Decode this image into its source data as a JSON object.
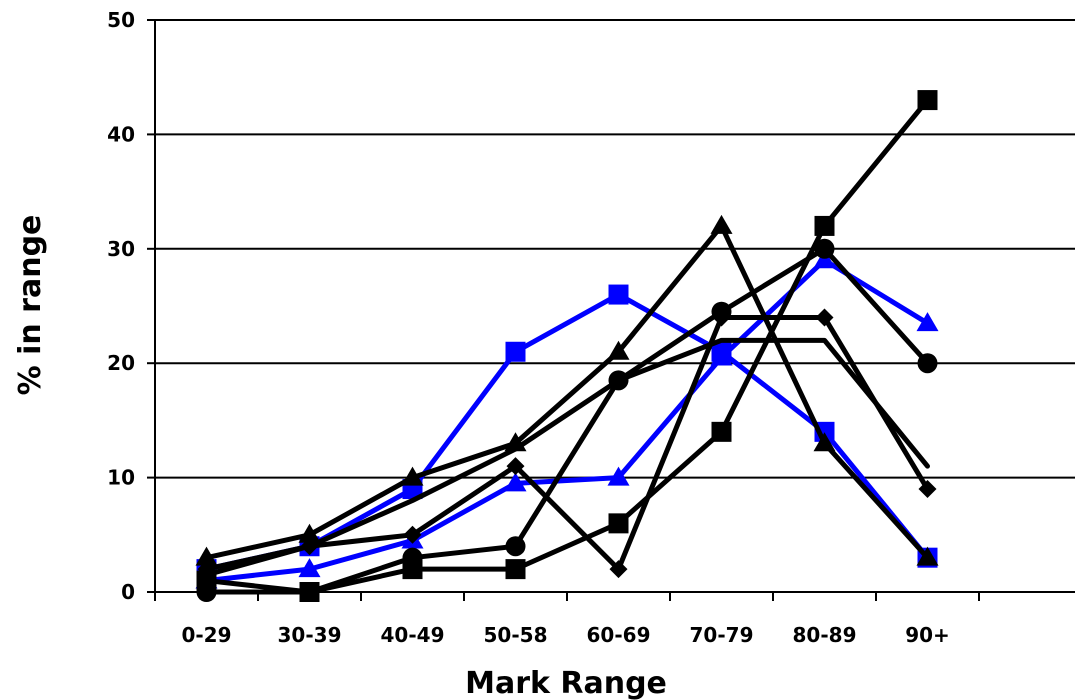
{
  "chart_data": {
    "type": "line",
    "title": "",
    "xlabel": "Mark Range",
    "ylabel": "% in range",
    "categories": [
      "0-29",
      "30-39",
      "40-49",
      "50-58",
      "60-69",
      "70-79",
      "80-89",
      "90+"
    ],
    "ylim": [
      0,
      50
    ],
    "yticks": [
      "0",
      "10",
      "20",
      "30",
      "40",
      "50"
    ],
    "grid": "horizontal",
    "legend": "none",
    "series": [
      {
        "color": "#0000ff",
        "marker": "square",
        "values": [
          2,
          4,
          9,
          21,
          26,
          21,
          14,
          3
        ]
      },
      {
        "color": "#0000ff",
        "marker": "triangle",
        "values": [
          1,
          2,
          4.5,
          9.5,
          10,
          20.5,
          29,
          23.5
        ]
      },
      {
        "color": "#000000",
        "marker": "square",
        "values": [
          1,
          0,
          2,
          2,
          6,
          14,
          32,
          43
        ]
      },
      {
        "color": "#000000",
        "marker": "circle",
        "values": [
          0,
          0,
          3,
          4,
          18.5,
          24.5,
          30,
          20
        ]
      },
      {
        "color": "#000000",
        "marker": "triangle",
        "values": [
          3,
          5,
          10,
          13,
          21,
          32,
          13,
          3
        ]
      },
      {
        "color": "#000000",
        "marker": "diamond",
        "values": [
          2,
          4,
          5,
          11,
          2,
          24,
          24,
          9
        ]
      },
      {
        "color": "#000000",
        "marker": "none",
        "values": [
          1.5,
          4,
          8,
          12.5,
          18.5,
          22,
          22,
          11
        ]
      }
    ]
  }
}
